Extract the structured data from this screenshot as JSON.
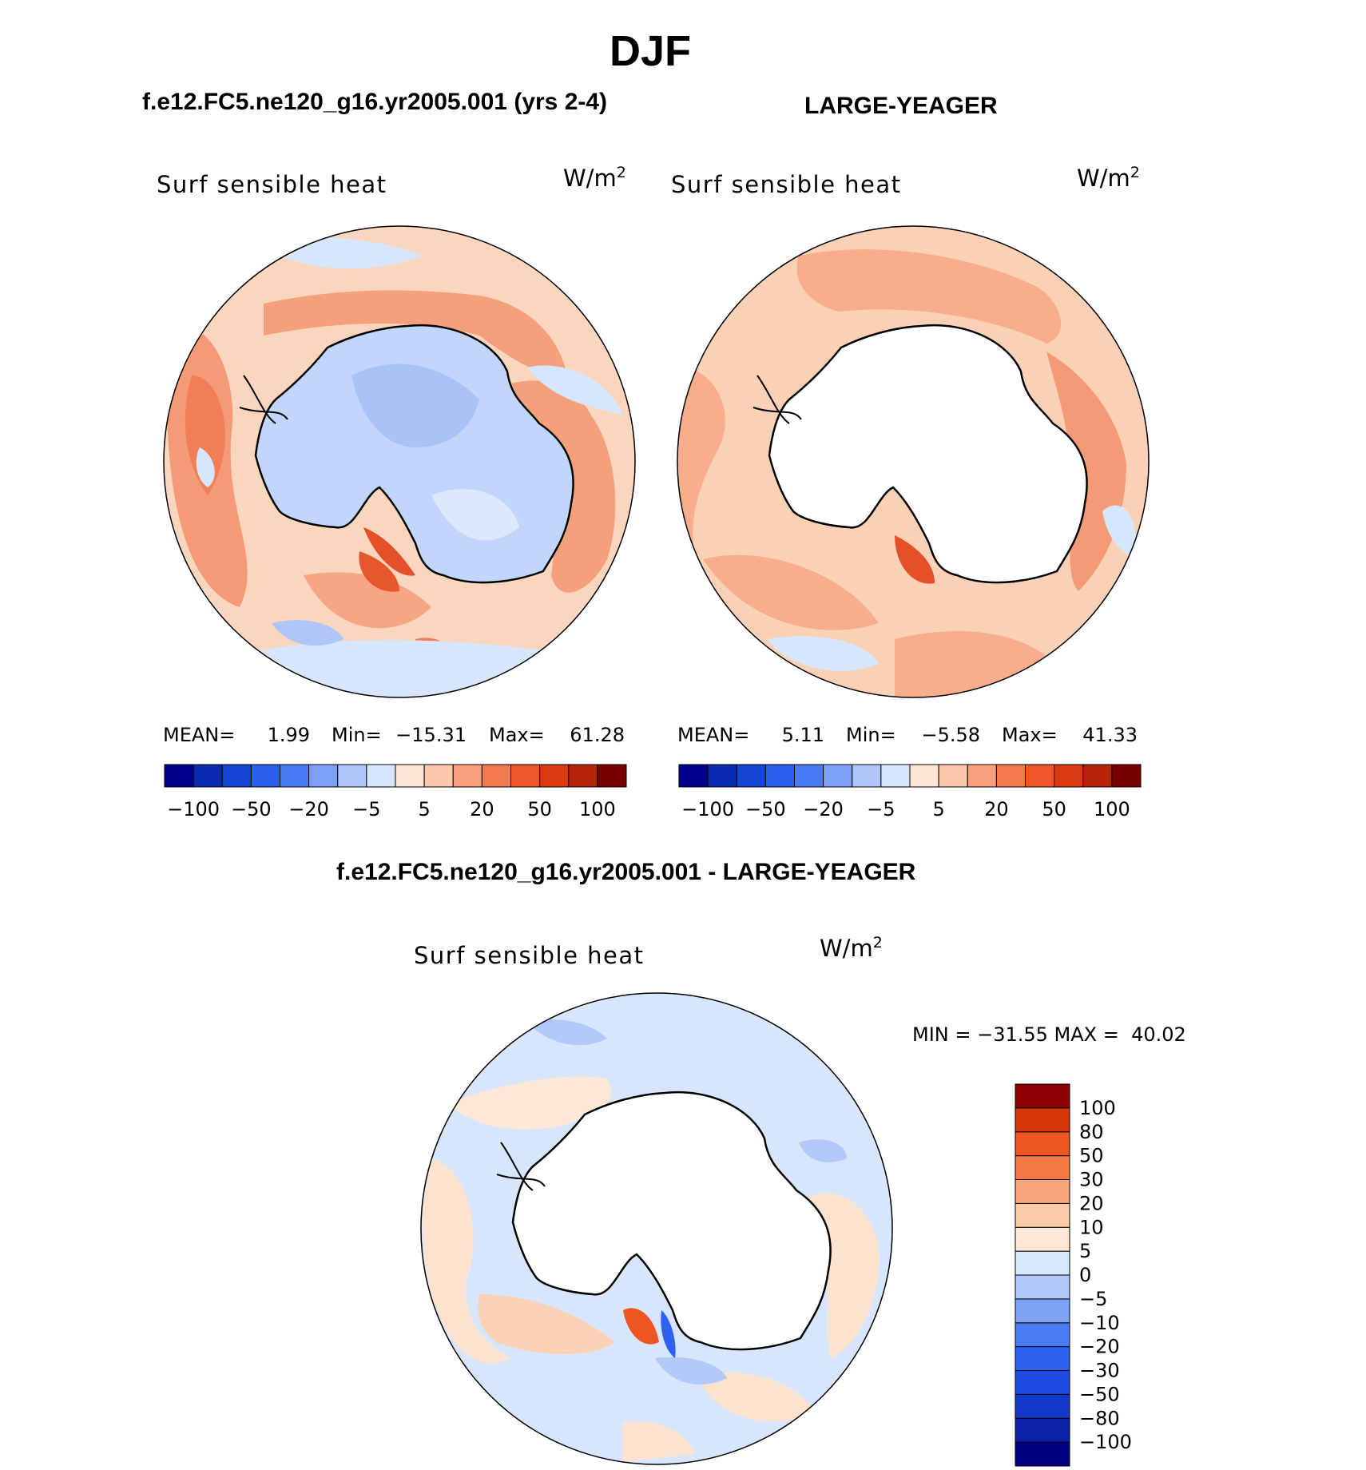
{
  "figure": {
    "season": "DJF",
    "case_title": "f.e12.FC5.ne120_g16.yr2005.001 (yrs 2-4)",
    "ref_title": "LARGE-YEAGER",
    "diff_title": "f.e12.FC5.ne120_g16.yr2005.001 - LARGE-YEAGER"
  },
  "chart_data": [
    {
      "type": "heatmap",
      "projection": "south-polar-stereographic",
      "panel": "model",
      "variable": "Surf sensible heat",
      "units_base": "W/m",
      "units_exp": "2",
      "stats": {
        "mean_label": "MEAN=",
        "mean": "1.99",
        "min_label": "Min=",
        "min": "−15.31",
        "max_label": "Max=",
        "max": "61.28"
      },
      "colorbar": {
        "orientation": "horizontal",
        "levels": [
          -100,
          -50,
          -20,
          -5,
          5,
          20,
          50,
          100
        ],
        "tick_labels": [
          "−100",
          "−50",
          "−20",
          "−5",
          "5",
          "20",
          "50",
          "100"
        ],
        "colors": [
          "#00008b",
          "#0a2bb0",
          "#1545d6",
          "#2a5ff0",
          "#4a7bf5",
          "#7ea1f7",
          "#aec6f9",
          "#d7e6fc",
          "#fde6d4",
          "#fbc8ac",
          "#f8a07c",
          "#f47b4f",
          "#f0582c",
          "#d93a12",
          "#b5250a",
          "#7a0000"
        ]
      }
    },
    {
      "type": "heatmap",
      "projection": "south-polar-stereographic",
      "panel": "observations",
      "variable": "Surf sensible heat",
      "units_base": "W/m",
      "units_exp": "2",
      "stats": {
        "mean_label": "MEAN=",
        "mean": "5.11",
        "min_label": "Min=",
        "min": "−5.58",
        "max_label": "Max=",
        "max": "41.33"
      },
      "colorbar": {
        "orientation": "horizontal",
        "levels": [
          -100,
          -50,
          -20,
          -5,
          5,
          20,
          50,
          100
        ],
        "tick_labels": [
          "−100",
          "−50",
          "−20",
          "−5",
          "5",
          "20",
          "50",
          "100"
        ],
        "colors": [
          "#00008b",
          "#0a2bb0",
          "#1545d6",
          "#2a5ff0",
          "#4a7bf5",
          "#7ea1f7",
          "#aec6f9",
          "#d7e6fc",
          "#fde6d4",
          "#fbc8ac",
          "#f8a07c",
          "#f47b4f",
          "#f0582c",
          "#d93a12",
          "#b5250a",
          "#7a0000"
        ]
      }
    },
    {
      "type": "heatmap",
      "projection": "south-polar-stereographic",
      "panel": "difference",
      "variable": "Surf sensible heat",
      "units_base": "W/m",
      "units_exp": "2",
      "minmax": "MIN = −31.55 MAX =  40.02",
      "colorbar": {
        "orientation": "vertical",
        "levels": [
          -100,
          -80,
          -50,
          -30,
          -20,
          -10,
          -5,
          0,
          5,
          10,
          20,
          30,
          50,
          80,
          100
        ],
        "tick_labels": [
          "−100",
          "−80",
          "−50",
          "−30",
          "−20",
          "−10",
          "−5",
          "0",
          "5",
          "10",
          "20",
          "30",
          "50",
          "80",
          "100"
        ],
        "colors": [
          "#000080",
          "#0a22a8",
          "#1438c8",
          "#1f4ce0",
          "#2d62ee",
          "#4a7cf2",
          "#7ea3f6",
          "#b2c9f9",
          "#d8e8fc",
          "#fde7d6",
          "#fbcaa8",
          "#f8a57a",
          "#f47a45",
          "#ef5521",
          "#d6380c",
          "#8b0000"
        ]
      }
    }
  ]
}
